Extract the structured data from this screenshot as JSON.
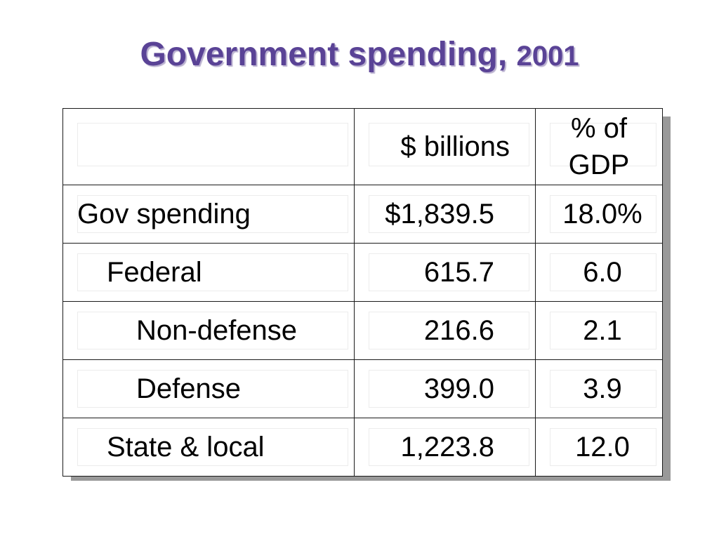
{
  "title": {
    "main": "Government spending, ",
    "year": "2001"
  },
  "table": {
    "columns": [
      "",
      "$ billions",
      "% of GDP"
    ],
    "rows": [
      {
        "label": "Gov spending",
        "value": "$1,839.5",
        "pct": "18.0%",
        "indent": 0
      },
      {
        "label": "Federal",
        "value": "615.7",
        "pct": "6.0",
        "indent": 1
      },
      {
        "label": "Non-defense",
        "value": "216.6",
        "pct": "2.1",
        "indent": 2
      },
      {
        "label": "Defense",
        "value": "399.0",
        "pct": "3.9",
        "indent": 2
      },
      {
        "label": "State & local",
        "value": "1,223.8",
        "pct": "12.0",
        "indent": 1
      }
    ]
  },
  "colors": {
    "title": "#5a4396",
    "table_shadow": "#999999",
    "border": "#1a1a1a"
  }
}
